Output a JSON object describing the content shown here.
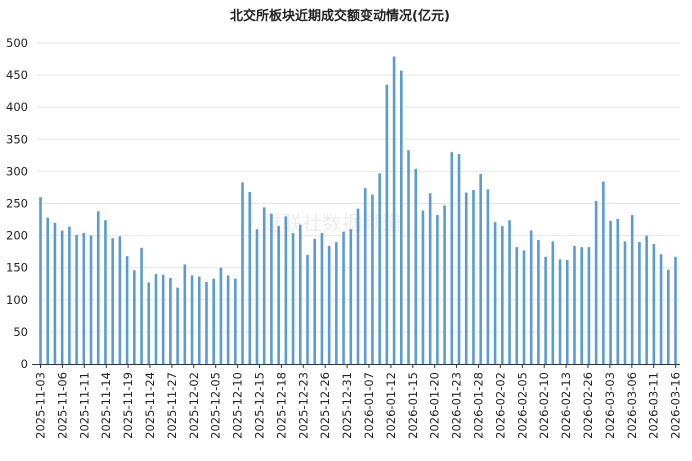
{
  "chart_data": {
    "type": "bar",
    "title": "北交所板块近期成交额变动情况(亿元)",
    "xlabel": "",
    "ylabel": "",
    "ylim": [
      0,
      500
    ],
    "yticks": [
      0,
      50,
      100,
      150,
      200,
      250,
      300,
      350,
      400,
      450,
      500
    ],
    "grid": true,
    "legend": "none",
    "bar_color": "#5b9bd5",
    "watermark": "财联社数据频道",
    "x_tick_labels": [
      "2025-11-03",
      "2025-11-06",
      "2025-11-11",
      "2025-11-14",
      "2025-11-19",
      "2025-11-24",
      "2025-11-27",
      "2025-12-02",
      "2025-12-05",
      "2025-12-10",
      "2025-12-15",
      "2025-12-18",
      "2025-12-23",
      "2025-12-26",
      "2025-12-31",
      "2026-01-07",
      "2026-01-12",
      "2026-01-15",
      "2026-01-20",
      "2026-01-23",
      "2026-01-28",
      "2026-02-02",
      "2026-02-05",
      "2026-02-10",
      "2026-02-13",
      "2026-02-26",
      "2026-03-03",
      "2026-03-06",
      "2026-03-11",
      "2026-03-16"
    ],
    "values": [
      260,
      228,
      220,
      208,
      214,
      201,
      204,
      200,
      238,
      224,
      196,
      199,
      168,
      146,
      181,
      127,
      140,
      139,
      134,
      119,
      155,
      138,
      136,
      128,
      133,
      150,
      138,
      133,
      283,
      268,
      210,
      244,
      234,
      215,
      230,
      204,
      217,
      170,
      195,
      204,
      184,
      190,
      206,
      210,
      242,
      274,
      264,
      297,
      435,
      479,
      457,
      333,
      304,
      239,
      266,
      232,
      247,
      330,
      327,
      267,
      271,
      296,
      272,
      221,
      215,
      224,
      182,
      177,
      208,
      193,
      167,
      191,
      163,
      162,
      184,
      182,
      182,
      254,
      284,
      223,
      226,
      191,
      232,
      190,
      200,
      187,
      171,
      147,
      167
    ]
  }
}
